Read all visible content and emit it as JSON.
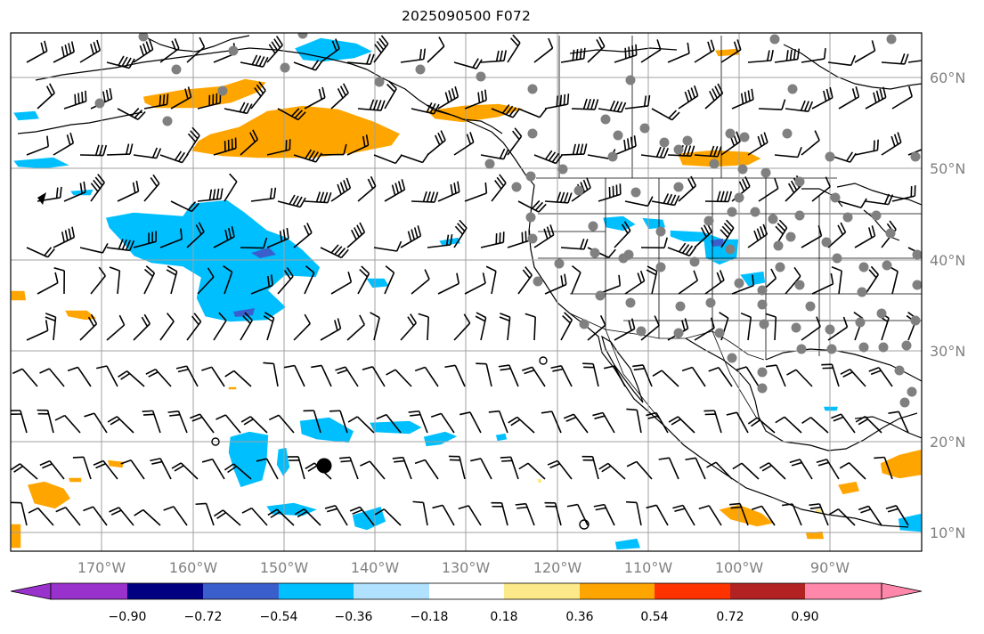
{
  "title": "2025090500 F072",
  "map": {
    "lon_labels": [
      "170°W",
      "160°W",
      "150°W",
      "140°W",
      "130°W",
      "120°W",
      "110°W",
      "100°W",
      "90°W"
    ],
    "lat_labels": [
      "60°N",
      "50°N",
      "40°N",
      "30°N",
      "20°N",
      "10°N"
    ],
    "colors": {
      "land_outline": "#000000",
      "gridline": "#a0a0a0",
      "station_dot": "#808080",
      "neg_light": "#00bfff",
      "neg_mid": "#3a5fcd",
      "pos_light": "#ffa500",
      "pos_pale": "#fce98a"
    }
  },
  "colorbar": {
    "labels": [
      "−0.90",
      "−0.72",
      "−0.54",
      "−0.36",
      "−0.18",
      "0.18",
      "0.36",
      "0.54",
      "0.72",
      "0.90"
    ],
    "colors": [
      "#9932cc",
      "#000080",
      "#3a5fcd",
      "#00bfff",
      "#b0e2ff",
      "#ffffff",
      "#fce98a",
      "#ffa500",
      "#ff3300",
      "#b22222",
      "#ff88aa"
    ]
  }
}
